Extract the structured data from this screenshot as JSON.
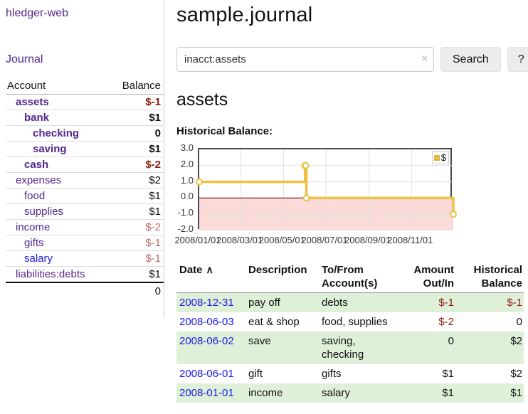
{
  "app": {
    "title": "hledger-web"
  },
  "colors": {
    "accent_purple": "#53278e",
    "link_blue": "#1a1ae8",
    "negative_strong": "#8b1a10",
    "negative_soft": "#c06a6a",
    "row_stripe_green": "#dff0d8",
    "chart_gold": "#edc240"
  },
  "sidebar": {
    "journal_link": "Journal",
    "table": {
      "account_header": "Account",
      "balance_header": "Balance",
      "rows": [
        {
          "name": "assets",
          "balance": "$-1",
          "indent": 1,
          "bold": true,
          "balance_tone": "neg-strong"
        },
        {
          "name": "bank",
          "balance": "$1",
          "indent": 2,
          "bold": true
        },
        {
          "name": "checking",
          "balance": "0",
          "indent": 3,
          "bold": true
        },
        {
          "name": "saving",
          "balance": "$1",
          "indent": 3,
          "bold": true
        },
        {
          "name": "cash",
          "balance": "$-2",
          "indent": 2,
          "bold": true,
          "balance_tone": "neg-strong"
        },
        {
          "name": "expenses",
          "balance": "$2",
          "indent": 1,
          "bold": false
        },
        {
          "name": "food",
          "balance": "$1",
          "indent": 2,
          "bold": false
        },
        {
          "name": "supplies",
          "balance": "$1",
          "indent": 2,
          "bold": false
        },
        {
          "name": "income",
          "balance": "$-2",
          "indent": 1,
          "bold": false,
          "balance_tone": "neg-soft"
        },
        {
          "name": "gifts",
          "balance": "$-1",
          "indent": 2,
          "bold": false,
          "balance_tone": "neg-soft"
        },
        {
          "name": "salary",
          "balance": "$-1",
          "indent": 2,
          "bold": false,
          "balance_tone": "neg-soft",
          "link_tone": "blue"
        },
        {
          "name": "liabilities:debts",
          "balance": "$1",
          "indent": 1,
          "bold": false
        }
      ],
      "total": "0"
    }
  },
  "main": {
    "title": "sample.journal",
    "search": {
      "value": "inacct:assets",
      "clear_icon": "×",
      "button_label": "Search",
      "help_label": "?"
    },
    "section_title": "assets"
  },
  "chart_data": {
    "type": "line",
    "step": true,
    "title": "Historical Balance:",
    "x_range": [
      "2008-01-01",
      "2008-12-31"
    ],
    "ylim": [
      -2,
      3
    ],
    "series": [
      {
        "name": "$",
        "color": "#edc240",
        "points": [
          [
            "2008-01-01",
            1
          ],
          [
            "2008-06-01",
            2
          ],
          [
            "2008-06-02",
            2
          ],
          [
            "2008-06-03",
            0
          ],
          [
            "2008-12-31",
            -1
          ]
        ]
      }
    ],
    "x_ticks": [
      {
        "date": "2008-01-01",
        "label": "2008/01/01"
      },
      {
        "date": "2008-03-01",
        "label": "2008/03/01"
      },
      {
        "date": "2008-05-01",
        "label": "2008/05/01"
      },
      {
        "date": "2008-07-01",
        "label": "2008/07/01"
      },
      {
        "date": "2008-09-01",
        "label": "2008/09/01"
      },
      {
        "date": "2008-11-01",
        "label": "2008/11/01"
      }
    ],
    "y_ticks": [
      {
        "value": 3,
        "label": "3.0"
      },
      {
        "value": 2,
        "label": "2.0"
      },
      {
        "value": 1,
        "label": "1.0"
      },
      {
        "value": 0,
        "label": "0.0"
      },
      {
        "value": -1,
        "label": "-1.0"
      },
      {
        "value": -2,
        "label": "-2.0"
      }
    ],
    "legend": {
      "label": "$",
      "position": "top-right"
    },
    "grid": true,
    "negative_region_color": "#fbdada",
    "zero_line_color": "#8b1a1a"
  },
  "register": {
    "headers": {
      "date": "Date",
      "sort_indicator": "∧",
      "description": "Description",
      "account": "To/From Account(s)",
      "amount": "Amount Out/In",
      "balance": "Historical Balance"
    },
    "rows": [
      {
        "date": "2008-12-31",
        "description": "pay off",
        "account": "debts",
        "amount": "$-1",
        "balance": "$-1",
        "amount_tone": "neg-strong",
        "balance_tone": "neg-strong"
      },
      {
        "date": "2008-06-03",
        "description": "eat & shop",
        "account": "food, supplies",
        "amount": "$-2",
        "balance": "0",
        "amount_tone": "neg-strong"
      },
      {
        "date": "2008-06-02",
        "description": "save",
        "account": "saving, checking",
        "amount": "0",
        "balance": "$2"
      },
      {
        "date": "2008-06-01",
        "description": "gift",
        "account": "gifts",
        "amount": "$1",
        "balance": "$2"
      },
      {
        "date": "2008-01-01",
        "description": "income",
        "account": "salary",
        "amount": "$1",
        "balance": "$1"
      }
    ]
  }
}
